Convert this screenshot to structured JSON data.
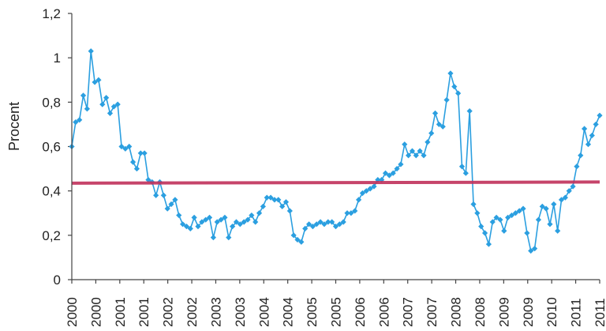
{
  "chart_data": {
    "type": "line",
    "ylabel": "Procent",
    "ylim": [
      0,
      1.2
    ],
    "yticks": [
      "0",
      "0,2",
      "0,4",
      "0,6",
      "0,8",
      "1",
      "1,2"
    ],
    "xticks": [
      "2000",
      "2000",
      "2001",
      "2001",
      "2002",
      "2002",
      "2003",
      "2003",
      "2004",
      "2004",
      "2005",
      "2005",
      "2006",
      "2006",
      "2007",
      "2007",
      "2008",
      "2008",
      "2009",
      "2009",
      "2010",
      "2011",
      "2011"
    ],
    "grid": false,
    "legend": "none",
    "series": [
      {
        "color": "#2b9fe0",
        "marker": "diamond",
        "values": [
          0.6,
          0.71,
          0.72,
          0.83,
          0.77,
          1.03,
          0.89,
          0.9,
          0.79,
          0.82,
          0.75,
          0.78,
          0.79,
          0.6,
          0.59,
          0.6,
          0.53,
          0.5,
          0.57,
          0.57,
          0.45,
          0.44,
          0.38,
          0.44,
          0.38,
          0.32,
          0.34,
          0.36,
          0.29,
          0.25,
          0.24,
          0.23,
          0.28,
          0.24,
          0.26,
          0.27,
          0.28,
          0.19,
          0.26,
          0.27,
          0.28,
          0.19,
          0.24,
          0.26,
          0.25,
          0.26,
          0.27,
          0.29,
          0.26,
          0.3,
          0.33,
          0.37,
          0.37,
          0.36,
          0.36,
          0.33,
          0.35,
          0.31,
          0.2,
          0.18,
          0.17,
          0.23,
          0.25,
          0.24,
          0.25,
          0.26,
          0.25,
          0.26,
          0.26,
          0.24,
          0.25,
          0.26,
          0.3,
          0.3,
          0.31,
          0.36,
          0.39,
          0.4,
          0.41,
          0.42,
          0.45,
          0.45,
          0.48,
          0.47,
          0.48,
          0.5,
          0.52,
          0.61,
          0.56,
          0.58,
          0.56,
          0.58,
          0.56,
          0.62,
          0.66,
          0.75,
          0.7,
          0.69,
          0.81,
          0.93,
          0.87,
          0.84,
          0.51,
          0.48,
          0.76,
          0.34,
          0.3,
          0.24,
          0.21,
          0.16,
          0.26,
          0.28,
          0.27,
          0.22,
          0.28,
          0.29,
          0.3,
          0.31,
          0.32,
          0.21,
          0.13,
          0.14,
          0.27,
          0.33,
          0.32,
          0.25,
          0.34,
          0.22,
          0.36,
          0.37,
          0.4,
          0.42,
          0.51,
          0.56,
          0.68,
          0.61,
          0.65,
          0.7,
          0.74
        ]
      },
      {
        "color": "#c0305a",
        "marker": "none",
        "values": [
          0.435,
          0.44
        ]
      }
    ]
  }
}
